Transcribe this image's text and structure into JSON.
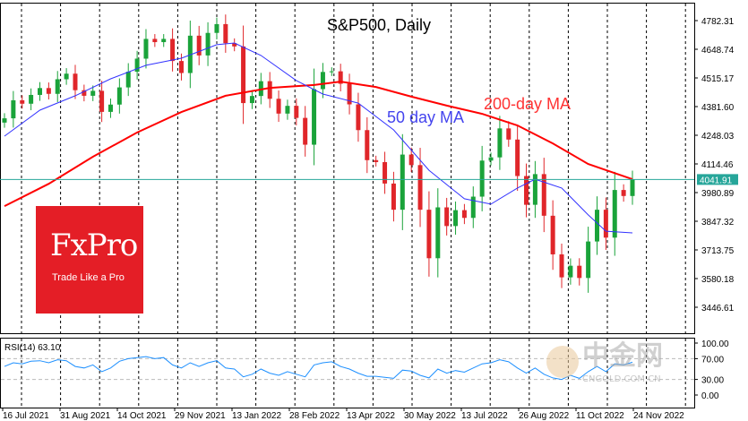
{
  "chart_data": {
    "type": "candlestick",
    "title": "S&P500, Daily",
    "ylim": [
      3380,
      4840
    ],
    "y_ticks": [
      "4782.31",
      "4648.74",
      "4515.17",
      "4381.60",
      "4248.03",
      "4114.46",
      "3980.89",
      "3847.32",
      "3713.75",
      "3580.18",
      "3446.61"
    ],
    "x_ticks": [
      "16 Jul 2021",
      "31 Aug 2021",
      "14 Oct 2021",
      "29 Nov 2021",
      "13 Jan 2022",
      "28 Feb 2022",
      "13 Apr 2022",
      "30 May 2022",
      "13 Jul 2022",
      "26 Aug 2022",
      "11 Oct 2022",
      "24 Nov 2022"
    ],
    "last_price": "4041.91",
    "last_price_color": "#26a69a",
    "dates": [
      "2021-07-16",
      "2021-07-23",
      "2021-07-30",
      "2021-08-06",
      "2021-08-13",
      "2021-08-20",
      "2021-08-27",
      "2021-09-03",
      "2021-09-10",
      "2021-09-17",
      "2021-09-24",
      "2021-10-01",
      "2021-10-08",
      "2021-10-15",
      "2021-10-22",
      "2021-10-29",
      "2021-11-05",
      "2021-11-12",
      "2021-11-19",
      "2021-11-26",
      "2021-12-03",
      "2021-12-10",
      "2021-12-17",
      "2021-12-24",
      "2021-12-31",
      "2022-01-07",
      "2022-01-14",
      "2022-01-21",
      "2022-01-28",
      "2022-02-04",
      "2022-02-11",
      "2022-02-18",
      "2022-02-25",
      "2022-03-04",
      "2022-03-11",
      "2022-03-18",
      "2022-03-25",
      "2022-04-01",
      "2022-04-08",
      "2022-04-14",
      "2022-04-22",
      "2022-04-29",
      "2022-05-06",
      "2022-05-13",
      "2022-05-20",
      "2022-05-27",
      "2022-06-03",
      "2022-06-10",
      "2022-06-17",
      "2022-06-24",
      "2022-07-01",
      "2022-07-08",
      "2022-07-15",
      "2022-07-22",
      "2022-07-29",
      "2022-08-05",
      "2022-08-12",
      "2022-08-19",
      "2022-08-26",
      "2022-09-02",
      "2022-09-09",
      "2022-09-16",
      "2022-09-23",
      "2022-09-30",
      "2022-10-07",
      "2022-10-14",
      "2022-10-21",
      "2022-10-28",
      "2022-11-04",
      "2022-11-11",
      "2022-11-18",
      "2022-11-23"
    ],
    "close": [
      4327,
      4411,
      4395,
      4436,
      4468,
      4441,
      4509,
      4535,
      4458,
      4432,
      4455,
      4357,
      4391,
      4471,
      4544,
      4605,
      4697,
      4682,
      4697,
      4594,
      4538,
      4712,
      4620,
      4725,
      4766,
      4677,
      4662,
      4398,
      4431,
      4500,
      4418,
      4349,
      4385,
      4329,
      4204,
      4463,
      4543,
      4546,
      4488,
      4392,
      4272,
      4132,
      4123,
      4023,
      3901,
      4158,
      4109,
      3901,
      3675,
      3912,
      3825,
      3899,
      3863,
      3962,
      4130,
      4145,
      4280,
      4228,
      4058,
      3924,
      4067,
      3873,
      3693,
      3586,
      3640,
      3583,
      3753,
      3901,
      3771,
      3993,
      3965,
      4042
    ],
    "series": [
      {
        "name": "200-day MA",
        "color": "#ff0000",
        "points": [
          [
            "2021-07-16",
            3918
          ],
          [
            "2021-08-20",
            4022
          ],
          [
            "2021-09-24",
            4148
          ],
          [
            "2021-10-29",
            4261
          ],
          [
            "2021-12-03",
            4356
          ],
          [
            "2022-01-07",
            4432
          ],
          [
            "2022-02-11",
            4469
          ],
          [
            "2022-03-18",
            4482
          ],
          [
            "2022-04-08",
            4498
          ],
          [
            "2022-05-06",
            4473
          ],
          [
            "2022-06-03",
            4428
          ],
          [
            "2022-07-01",
            4386
          ],
          [
            "2022-07-29",
            4348
          ],
          [
            "2022-08-26",
            4294
          ],
          [
            "2022-09-23",
            4210
          ],
          [
            "2022-10-21",
            4114
          ],
          [
            "2022-11-23",
            4043
          ]
        ]
      },
      {
        "name": "50 day MA",
        "color": "#3333ff",
        "points": [
          [
            "2021-07-16",
            4244
          ],
          [
            "2021-08-13",
            4365
          ],
          [
            "2021-09-10",
            4432
          ],
          [
            "2021-10-08",
            4511
          ],
          [
            "2021-11-05",
            4574
          ],
          [
            "2021-12-03",
            4607
          ],
          [
            "2021-12-31",
            4670
          ],
          [
            "2022-01-14",
            4678
          ],
          [
            "2022-02-04",
            4620
          ],
          [
            "2022-03-04",
            4503
          ],
          [
            "2022-03-25",
            4440
          ],
          [
            "2022-04-22",
            4398
          ],
          [
            "2022-05-20",
            4273
          ],
          [
            "2022-06-17",
            4085
          ],
          [
            "2022-07-15",
            3952
          ],
          [
            "2022-08-05",
            3927
          ],
          [
            "2022-08-26",
            4002
          ],
          [
            "2022-09-09",
            4043
          ],
          [
            "2022-09-30",
            4002
          ],
          [
            "2022-10-21",
            3877
          ],
          [
            "2022-11-04",
            3801
          ],
          [
            "2022-11-23",
            3793
          ]
        ]
      }
    ],
    "rsi": {
      "label": "RSI(14) 63.10",
      "ylim": [
        0,
        100
      ],
      "y_ticks": [
        "100.00",
        "70.00",
        "30.00",
        "0.00"
      ],
      "levels": [
        70,
        30
      ],
      "color": "#1e90ff",
      "values": [
        55,
        62,
        60,
        65,
        66,
        62,
        68,
        66,
        55,
        52,
        58,
        45,
        52,
        65,
        70,
        72,
        74,
        70,
        72,
        58,
        52,
        62,
        55,
        62,
        66,
        52,
        50,
        35,
        40,
        50,
        42,
        38,
        45,
        40,
        35,
        58,
        62,
        64,
        55,
        50,
        42,
        36,
        36,
        34,
        32,
        48,
        46,
        38,
        33,
        50,
        42,
        47,
        44,
        52,
        60,
        62,
        68,
        64,
        52,
        42,
        52,
        40,
        33,
        30,
        38,
        32,
        45,
        55,
        45,
        60,
        58,
        63.1
      ]
    }
  },
  "logo": {
    "brand": "FxPro",
    "tagline": "Trade Like a Pro"
  },
  "watermark": {
    "cn": "中金网",
    "en": "CNGOLD.COM.CN"
  }
}
